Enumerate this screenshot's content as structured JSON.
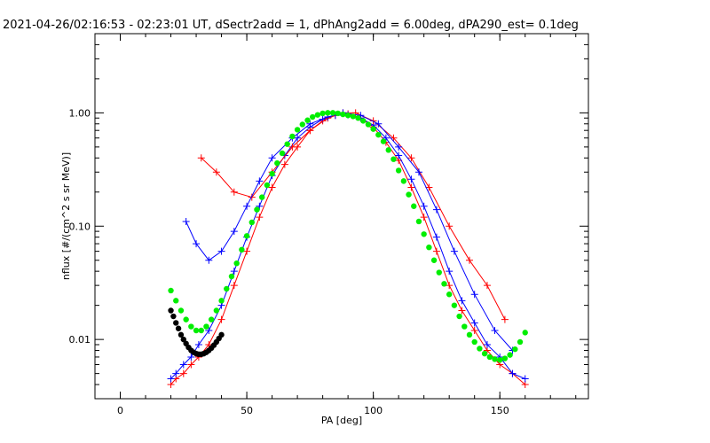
{
  "chart_data": {
    "type": "line",
    "title": "2021-04-26/02:16:53 - 02:23:01 UT, dSectr2add = 1, dPhAng2add = 6.00deg, dPA290_est=   0.1deg",
    "xlabel": "PA [deg]",
    "ylabel": "nflux [#/(cm^2 s sr MeV)]",
    "xlim": [
      -10,
      185
    ],
    "ylim": [
      0.003,
      5.0
    ],
    "yscale": "log",
    "xticks": [
      0,
      50,
      100,
      150
    ],
    "xtick_labels": [
      "0",
      "50",
      "100",
      "150"
    ],
    "yticks": [
      0.01,
      0.1,
      1.0
    ],
    "ytick_labels": [
      "0.01",
      "0.10",
      "1.00"
    ],
    "grid": false,
    "colors": {
      "red": "#ff0000",
      "blue": "#0000ff",
      "green": "#00ee00",
      "black": "#000000"
    },
    "series": [
      {
        "color": "red",
        "style": "line+plus",
        "x": [
          20,
          22,
          25,
          28,
          31,
          35,
          40,
          45,
          50,
          55,
          60,
          65,
          70,
          75,
          80,
          85,
          90,
          95,
          100,
          105,
          110,
          115,
          120,
          125,
          130,
          135,
          140,
          145,
          150,
          155,
          160
        ],
        "y": [
          0.004,
          0.0045,
          0.005,
          0.006,
          0.007,
          0.009,
          0.015,
          0.03,
          0.06,
          0.12,
          0.22,
          0.35,
          0.5,
          0.7,
          0.85,
          0.95,
          0.98,
          0.9,
          0.75,
          0.55,
          0.38,
          0.22,
          0.12,
          0.06,
          0.03,
          0.018,
          0.012,
          0.008,
          0.006,
          0.005,
          0.004
        ]
      },
      {
        "color": "blue",
        "style": "line+plus",
        "x": [
          20,
          22,
          25,
          28,
          31,
          35,
          40,
          45,
          50,
          55,
          60,
          65,
          70,
          75,
          80,
          85,
          90,
          95,
          100,
          105,
          110,
          115,
          120,
          125,
          130,
          135,
          140,
          145,
          150,
          155,
          160
        ],
        "y": [
          0.0045,
          0.005,
          0.006,
          0.007,
          0.009,
          0.012,
          0.02,
          0.04,
          0.08,
          0.15,
          0.28,
          0.42,
          0.6,
          0.75,
          0.88,
          0.95,
          0.96,
          0.9,
          0.78,
          0.6,
          0.42,
          0.26,
          0.15,
          0.08,
          0.04,
          0.022,
          0.014,
          0.009,
          0.007,
          0.005,
          0.0045
        ]
      },
      {
        "color": "red",
        "style": "line+plus",
        "x": [
          32,
          38,
          45,
          52,
          60,
          68,
          75,
          82,
          88,
          93,
          100,
          108,
          115,
          122,
          130,
          138,
          145,
          152
        ],
        "y": [
          0.4,
          0.3,
          0.2,
          0.18,
          0.3,
          0.5,
          0.7,
          0.9,
          1.0,
          1.0,
          0.85,
          0.6,
          0.4,
          0.22,
          0.1,
          0.05,
          0.03,
          0.015
        ]
      },
      {
        "color": "blue",
        "style": "line+plus",
        "x": [
          26,
          30,
          35,
          40,
          45,
          50,
          55,
          60,
          68,
          75,
          82,
          88,
          95,
          102,
          110,
          118,
          125,
          132,
          140,
          148,
          155
        ],
        "y": [
          0.11,
          0.07,
          0.05,
          0.06,
          0.09,
          0.15,
          0.25,
          0.4,
          0.6,
          0.8,
          0.92,
          1.0,
          0.95,
          0.8,
          0.5,
          0.3,
          0.14,
          0.06,
          0.025,
          0.012,
          0.008
        ]
      },
      {
        "color": "green",
        "style": "markers",
        "x": [
          20,
          22,
          24,
          26,
          28,
          30,
          32,
          34,
          36,
          38,
          40,
          42,
          44,
          46,
          48,
          50,
          52,
          54,
          56,
          58,
          60,
          62,
          64,
          66,
          68,
          70,
          72,
          74,
          76,
          78,
          80,
          82,
          84,
          86,
          88,
          90,
          92,
          94,
          96,
          98,
          100,
          102,
          104,
          106,
          108,
          110,
          112,
          114,
          116,
          118,
          120,
          122,
          124,
          126,
          128,
          130,
          132,
          134,
          136,
          138,
          140,
          142,
          144,
          146,
          148,
          150,
          152,
          154,
          156,
          158,
          160
        ],
        "y": [
          0.027,
          0.022,
          0.018,
          0.015,
          0.013,
          0.012,
          0.012,
          0.013,
          0.015,
          0.018,
          0.022,
          0.028,
          0.036,
          0.047,
          0.062,
          0.082,
          0.108,
          0.14,
          0.18,
          0.23,
          0.29,
          0.36,
          0.44,
          0.53,
          0.62,
          0.71,
          0.79,
          0.86,
          0.92,
          0.96,
          0.99,
          1.0,
          1.0,
          0.99,
          0.97,
          0.95,
          0.93,
          0.9,
          0.85,
          0.79,
          0.72,
          0.64,
          0.56,
          0.47,
          0.39,
          0.31,
          0.25,
          0.19,
          0.15,
          0.11,
          0.085,
          0.065,
          0.05,
          0.039,
          0.031,
          0.025,
          0.02,
          0.016,
          0.013,
          0.011,
          0.0095,
          0.0083,
          0.0075,
          0.007,
          0.0067,
          0.0066,
          0.0068,
          0.0073,
          0.0082,
          0.0095,
          0.0115
        ]
      },
      {
        "color": "black",
        "style": "markers",
        "x": [
          20,
          21,
          22,
          23,
          24,
          25,
          26,
          27,
          28,
          29,
          30,
          31,
          32,
          33,
          34,
          35,
          36,
          37,
          38,
          39,
          40
        ],
        "y": [
          0.018,
          0.016,
          0.014,
          0.0125,
          0.011,
          0.01,
          0.0092,
          0.0085,
          0.008,
          0.0077,
          0.0075,
          0.0074,
          0.0074,
          0.0075,
          0.0077,
          0.008,
          0.0084,
          0.0089,
          0.0095,
          0.0102,
          0.011
        ]
      }
    ]
  }
}
